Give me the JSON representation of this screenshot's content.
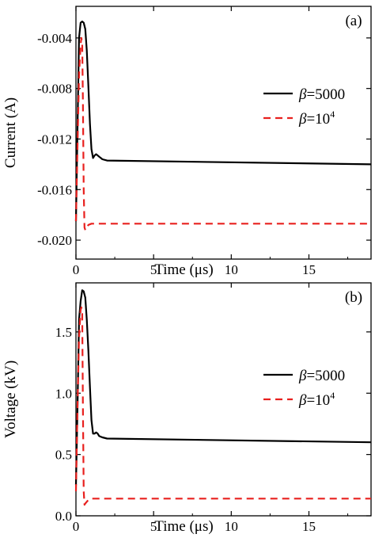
{
  "chart_data": [
    {
      "type": "line",
      "panel_label": "(a)",
      "xlabel": "Time (μs)",
      "ylabel": "Current (A)",
      "xlim": [
        0,
        19
      ],
      "ylim": [
        -0.0215,
        -0.0015
      ],
      "xticks": [
        0,
        5,
        10,
        15
      ],
      "xtick_labels": [
        "0",
        "5",
        "10",
        "15"
      ],
      "yticks": [
        -0.004,
        -0.008,
        -0.012,
        -0.016,
        -0.02
      ],
      "ytick_labels": [
        "-0.004",
        "-0.008",
        "-0.012",
        "-0.016",
        "-0.020"
      ],
      "grid": false,
      "legend_position": "right",
      "series": [
        {
          "name": "β=5000",
          "name_symbol": "β",
          "name_rest": "=5000",
          "color": "#000000",
          "dash": "solid",
          "x": [
            0,
            0.1,
            0.2,
            0.3,
            0.4,
            0.5,
            0.6,
            0.7,
            0.8,
            0.9,
            1.0,
            1.1,
            1.2,
            1.3,
            1.4,
            1.5,
            1.7,
            2.0,
            19.0
          ],
          "y": [
            -0.0185,
            -0.011,
            -0.004,
            -0.0028,
            -0.0027,
            -0.0028,
            -0.0033,
            -0.005,
            -0.0078,
            -0.0108,
            -0.0128,
            -0.0135,
            -0.0133,
            -0.0132,
            -0.0133,
            -0.0134,
            -0.0136,
            -0.0137,
            -0.014
          ]
        },
        {
          "name": "β=10⁴",
          "name_symbol": "β",
          "name_rest": "=10",
          "name_sup": "4",
          "color": "#e8201e",
          "dash": "dashed",
          "x": [
            0,
            0.1,
            0.2,
            0.3,
            0.35,
            0.4,
            0.45,
            0.5,
            0.55,
            0.6,
            0.8,
            1.0,
            19.0
          ],
          "y": [
            -0.0185,
            -0.0125,
            -0.007,
            -0.0045,
            -0.004,
            -0.0044,
            -0.009,
            -0.016,
            -0.019,
            -0.0192,
            -0.0188,
            -0.0187,
            -0.0187
          ]
        }
      ]
    },
    {
      "type": "line",
      "panel_label": "(b)",
      "xlabel": "Time (μs)",
      "ylabel": "Voltage (kV)",
      "xlim": [
        0,
        19
      ],
      "ylim": [
        0.0,
        1.9
      ],
      "xticks": [
        0,
        5,
        10,
        15
      ],
      "xtick_labels": [
        "0",
        "5",
        "10",
        "15"
      ],
      "yticks": [
        0.0,
        0.5,
        1.0,
        1.5
      ],
      "ytick_labels": [
        "0.0",
        "0.5",
        "1.0",
        "1.5"
      ],
      "grid": false,
      "legend_position": "right",
      "series": [
        {
          "name": "β=5000",
          "name_symbol": "β",
          "name_rest": "=5000",
          "color": "#000000",
          "dash": "solid",
          "x": [
            0,
            0.1,
            0.2,
            0.3,
            0.4,
            0.5,
            0.6,
            0.7,
            0.8,
            0.9,
            1.0,
            1.1,
            1.2,
            1.3,
            1.4,
            1.5,
            1.7,
            2.0,
            19.0
          ],
          "y": [
            0.25,
            0.9,
            1.6,
            1.75,
            1.84,
            1.83,
            1.78,
            1.6,
            1.35,
            1.05,
            0.78,
            0.67,
            0.67,
            0.68,
            0.67,
            0.65,
            0.64,
            0.63,
            0.6
          ]
        },
        {
          "name": "β=10⁴",
          "name_symbol": "β",
          "name_rest": "=10",
          "name_sup": "4",
          "color": "#e8201e",
          "dash": "dashed",
          "x": [
            0,
            0.1,
            0.2,
            0.3,
            0.35,
            0.4,
            0.45,
            0.5,
            0.55,
            0.6,
            0.8,
            1.0,
            19.0
          ],
          "y": [
            0.2,
            0.9,
            1.45,
            1.68,
            1.7,
            1.65,
            0.9,
            0.2,
            0.09,
            0.1,
            0.13,
            0.14,
            0.14
          ]
        }
      ]
    }
  ]
}
